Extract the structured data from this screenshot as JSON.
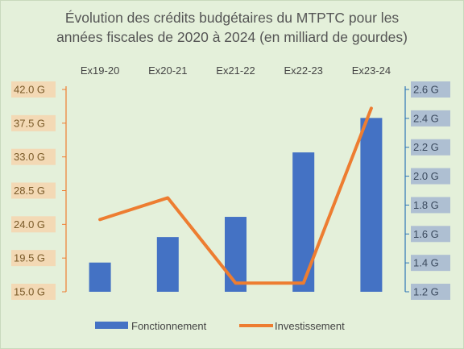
{
  "chart_data": {
    "type": "bar",
    "title_lines": [
      "Évolution des crédits budgétaires du MTPTC pour les",
      "années fiscales de 2020 à 2024 (en milliard de gourdes)"
    ],
    "categories": [
      "Ex19-20",
      "Ex20-21",
      "Ex21-22",
      "Ex22-23",
      "Ex23-24"
    ],
    "category_axis_position": "top",
    "series": [
      {
        "name": "Fonctionnement",
        "type": "bar",
        "axis": "left",
        "color": "#4472c4",
        "values": [
          18.9,
          22.3,
          25.0,
          33.6,
          38.2
        ]
      },
      {
        "name": "Investissement",
        "type": "line",
        "axis": "right",
        "color": "#ed7d31",
        "values": [
          1.7,
          1.85,
          1.26,
          1.26,
          2.47
        ]
      }
    ],
    "left_axis": {
      "ylim": [
        15.0,
        42.0
      ],
      "ticks": [
        15.0,
        19.5,
        24.0,
        28.5,
        33.0,
        37.5,
        42.0
      ],
      "tick_labels": [
        "15.0 G",
        "19.5 G",
        "24.0 G",
        "28.5 G",
        "33.0 G",
        "37.5 G",
        "42.0 G"
      ],
      "label_background": "#f3d9b5",
      "line_color": "#ed7d31"
    },
    "right_axis": {
      "ylim": [
        1.2,
        2.6
      ],
      "ticks": [
        1.2,
        1.4,
        1.6,
        1.8,
        2.0,
        2.2,
        2.4,
        2.6
      ],
      "tick_labels": [
        "1.2 G",
        "1.4 G",
        "1.6 G",
        "1.8 G",
        "2.0 G",
        "2.2 G",
        "2.4 G",
        "2.6 G"
      ],
      "label_background": "#aebfd2",
      "line_color": "#2e75b6"
    },
    "grid": false,
    "legend_position": "bottom",
    "background": "#e4f0da"
  }
}
